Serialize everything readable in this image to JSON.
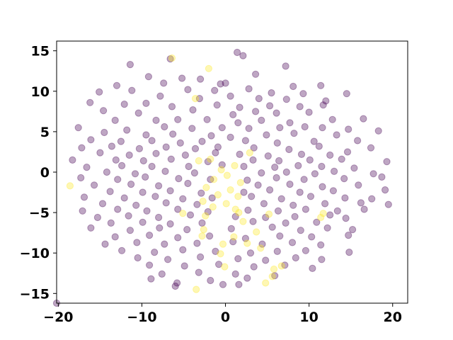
{
  "chart_data": {
    "type": "scatter",
    "title": "",
    "xlabel": "",
    "ylabel": "",
    "xlim": [
      -20.2,
      21.8
    ],
    "ylim": [
      -16.2,
      16.2
    ],
    "xticks": [
      -20,
      -10,
      0,
      10,
      20
    ],
    "yticks": [
      -15,
      -10,
      -5,
      0,
      5,
      10,
      15
    ],
    "xtick_labels": [
      "−20",
      "−10",
      "0",
      "10",
      "20"
    ],
    "ytick_labels": [
      "−15",
      "−10",
      "−5",
      "0",
      "5",
      "10",
      "15"
    ],
    "grid": false,
    "legend": "none",
    "marker_alpha": 0.35,
    "colors": {
      "class_a": "#440154",
      "class_b": "#fde725"
    },
    "series": [
      {
        "color_key": "class_a",
        "points": [
          [
            -11.4,
            13.3
          ],
          [
            -6.6,
            14.0
          ],
          [
            1.4,
            14.8
          ],
          [
            2.1,
            14.4
          ],
          [
            7.2,
            13.1
          ],
          [
            3.6,
            12.1
          ],
          [
            -9.2,
            11.8
          ],
          [
            -5.2,
            11.6
          ],
          [
            -3.0,
            11.5
          ],
          [
            -0.6,
            10.9
          ],
          [
            0.0,
            11.0
          ],
          [
            -7.4,
            11.0
          ],
          [
            11.4,
            10.7
          ],
          [
            8.1,
            10.6
          ],
          [
            -13.0,
            10.7
          ],
          [
            -11.2,
            10.1
          ],
          [
            -4.5,
            10.2
          ],
          [
            -1.3,
            10.1
          ],
          [
            2.8,
            10.3
          ],
          [
            5.5,
            9.8
          ],
          [
            9.3,
            9.7
          ],
          [
            14.5,
            9.7
          ],
          [
            -15.1,
            9.9
          ],
          [
            -7.8,
            9.4
          ],
          [
            -3.1,
            9.1
          ],
          [
            0.6,
            9.4
          ],
          [
            4.0,
            9.1
          ],
          [
            7.3,
            9.0
          ],
          [
            12.0,
            8.8
          ],
          [
            -16.2,
            8.6
          ],
          [
            -12.1,
            8.4
          ],
          [
            -9.5,
            8.5
          ],
          [
            -6.4,
            8.1
          ],
          [
            -1.0,
            8.3
          ],
          [
            1.7,
            8.0
          ],
          [
            5.3,
            8.2
          ],
          [
            8.9,
            8.1
          ],
          [
            11.7,
            8.3
          ],
          [
            -14.6,
            7.6
          ],
          [
            -10.4,
            7.3
          ],
          [
            -3.9,
            7.7
          ],
          [
            0.9,
            7.1
          ],
          [
            3.6,
            7.5
          ],
          [
            6.1,
            7.3
          ],
          [
            10.0,
            7.4
          ],
          [
            16.5,
            6.6
          ],
          [
            -13.2,
            6.4
          ],
          [
            -8.3,
            6.4
          ],
          [
            -5.7,
            6.5
          ],
          [
            -2.2,
            6.5
          ],
          [
            1.5,
            6.1
          ],
          [
            4.3,
            6.4
          ],
          [
            7.7,
            6.1
          ],
          [
            12.8,
            6.5
          ],
          [
            -17.6,
            5.5
          ],
          [
            -11.8,
            5.2
          ],
          [
            -7.3,
            5.6
          ],
          [
            -4.0,
            5.4
          ],
          [
            -0.4,
            5.5
          ],
          [
            2.8,
            5.4
          ],
          [
            6.5,
            5.5
          ],
          [
            9.5,
            5.6
          ],
          [
            11.6,
            5.5
          ],
          [
            14.7,
            5.3
          ],
          [
            -14.5,
            4.9
          ],
          [
            -9.5,
            4.6
          ],
          [
            -6.3,
            4.7
          ],
          [
            -1.7,
            4.5
          ],
          [
            0.6,
            4.3
          ],
          [
            4.9,
            4.6
          ],
          [
            8.2,
            4.8
          ],
          [
            13.3,
            4.6
          ],
          [
            18.3,
            5.1
          ],
          [
            -16.1,
            4.0
          ],
          [
            -12.5,
            3.8
          ],
          [
            -8.8,
            3.9
          ],
          [
            -5.4,
            3.6
          ],
          [
            -2.8,
            3.8
          ],
          [
            2.4,
            3.9
          ],
          [
            6.2,
            3.6
          ],
          [
            10.6,
            3.8
          ],
          [
            15.8,
            3.9
          ],
          [
            -17.2,
            3.0
          ],
          [
            -13.6,
            3.2
          ],
          [
            -10.3,
            2.9
          ],
          [
            -7.1,
            3.1
          ],
          [
            -3.6,
            2.9
          ],
          [
            -0.9,
            3.1
          ],
          [
            3.4,
            3.0
          ],
          [
            7.6,
            2.8
          ],
          [
            11.2,
            3.2
          ],
          [
            17.4,
            3.0
          ],
          [
            -15.0,
            2.4
          ],
          [
            -11.5,
            2.1
          ],
          [
            -8.3,
            2.3
          ],
          [
            -4.8,
            2.1
          ],
          [
            -1.2,
            2.4
          ],
          [
            1.7,
            2.2
          ],
          [
            5.1,
            2.0
          ],
          [
            9.1,
            2.2
          ],
          [
            12.5,
            2.1
          ],
          [
            14.6,
            2.5
          ],
          [
            -18.3,
            1.5
          ],
          [
            -13.1,
            1.5
          ],
          [
            -9.8,
            1.4
          ],
          [
            -6.5,
            1.6
          ],
          [
            -2.1,
            1.3
          ],
          [
            3.3,
            1.5
          ],
          [
            6.4,
            1.4
          ],
          [
            10.1,
            1.5
          ],
          [
            13.9,
            1.6
          ],
          [
            19.3,
            1.3
          ],
          [
            -16.6,
            0.6
          ],
          [
            -12.4,
            0.8
          ],
          [
            -8.8,
            0.7
          ],
          [
            -4.4,
            0.7
          ],
          [
            -0.4,
            0.9
          ],
          [
            2.2,
            0.7
          ],
          [
            5.9,
            0.6
          ],
          [
            8.7,
            0.8
          ],
          [
            11.5,
            0.7
          ],
          [
            15.4,
            0.5
          ],
          [
            -14.2,
            0.0
          ],
          [
            -10.8,
            -0.2
          ],
          [
            -7.2,
            0.1
          ],
          [
            -3.7,
            -0.1
          ],
          [
            4.3,
            -0.1
          ],
          [
            7.3,
            0.0
          ],
          [
            10.7,
            -0.2
          ],
          [
            13.0,
            0.1
          ],
          [
            17.7,
            -0.2
          ],
          [
            -17.3,
            -0.7
          ],
          [
            -12.9,
            -0.9
          ],
          [
            -9.6,
            -0.6
          ],
          [
            -5.6,
            -0.8
          ],
          [
            -1.8,
            -0.9
          ],
          [
            2.6,
            -1.0
          ],
          [
            6.1,
            -0.7
          ],
          [
            9.4,
            -0.9
          ],
          [
            14.2,
            -0.8
          ],
          [
            18.7,
            -0.6
          ],
          [
            -15.7,
            -1.6
          ],
          [
            -11.3,
            -1.5
          ],
          [
            -8.0,
            -1.7
          ],
          [
            -4.5,
            -1.4
          ],
          [
            3.9,
            -1.6
          ],
          [
            7.7,
            -1.5
          ],
          [
            11.6,
            -1.8
          ],
          [
            15.9,
            -1.6
          ],
          [
            -13.8,
            -2.4
          ],
          [
            -9.9,
            -2.5
          ],
          [
            -6.6,
            -2.3
          ],
          [
            -2.9,
            -2.6
          ],
          [
            2.2,
            -2.5
          ],
          [
            5.3,
            -2.2
          ],
          [
            8.9,
            -2.5
          ],
          [
            12.9,
            -2.3
          ],
          [
            19.1,
            -2.2
          ],
          [
            -16.9,
            -3.1
          ],
          [
            -12.1,
            -3.2
          ],
          [
            -8.4,
            -3.0
          ],
          [
            -5.1,
            -3.3
          ],
          [
            -1.6,
            -3.2
          ],
          [
            3.1,
            -3.0
          ],
          [
            6.7,
            -3.3
          ],
          [
            10.2,
            -3.0
          ],
          [
            14.3,
            -3.2
          ],
          [
            17.5,
            -3.3
          ],
          [
            -14.7,
            -3.9
          ],
          [
            -10.7,
            -4.1
          ],
          [
            -7.1,
            -3.8
          ],
          [
            -3.4,
            -4.0
          ],
          [
            4.6,
            -3.9
          ],
          [
            8.1,
            -4.1
          ],
          [
            11.9,
            -3.9
          ],
          [
            16.2,
            -3.8
          ],
          [
            19.5,
            -4.0
          ],
          [
            -17.1,
            -4.8
          ],
          [
            -12.9,
            -4.6
          ],
          [
            -9.4,
            -4.8
          ],
          [
            -5.7,
            -4.6
          ],
          [
            -2.1,
            -4.9
          ],
          [
            2.7,
            -4.7
          ],
          [
            6.3,
            -4.8
          ],
          [
            9.6,
            -4.6
          ],
          [
            13.4,
            -4.8
          ],
          [
            16.6,
            -4.6
          ],
          [
            -15.3,
            -5.6
          ],
          [
            -11.6,
            -5.4
          ],
          [
            -8.0,
            -5.6
          ],
          [
            -4.2,
            -5.3
          ],
          [
            1.2,
            -5.5
          ],
          [
            4.8,
            -5.6
          ],
          [
            8.3,
            -5.5
          ],
          [
            12.5,
            -5.3
          ],
          [
            14.4,
            -5.7
          ],
          [
            -13.7,
            -6.3
          ],
          [
            -9.9,
            -6.2
          ],
          [
            -6.6,
            -6.4
          ],
          [
            -2.8,
            -6.3
          ],
          [
            3.3,
            -6.1
          ],
          [
            7.2,
            -6.3
          ],
          [
            10.9,
            -6.2
          ],
          [
            -16.1,
            -6.9
          ],
          [
            -11.4,
            -7.2
          ],
          [
            -7.9,
            -6.9
          ],
          [
            -4.6,
            -7.1
          ],
          [
            0.7,
            -7.0
          ],
          [
            5.6,
            -6.8
          ],
          [
            9.0,
            -7.2
          ],
          [
            12.2,
            -6.9
          ],
          [
            15.2,
            -7.1
          ],
          [
            -13.2,
            -8.0
          ],
          [
            -9.1,
            -7.8
          ],
          [
            -5.7,
            -8.1
          ],
          [
            -1.9,
            -7.9
          ],
          [
            2.4,
            -8.2
          ],
          [
            6.5,
            -7.9
          ],
          [
            10.3,
            -8.0
          ],
          [
            14.7,
            -7.8
          ],
          [
            -14.4,
            -8.9
          ],
          [
            -10.6,
            -8.7
          ],
          [
            -7.3,
            -8.9
          ],
          [
            -3.4,
            -8.8
          ],
          [
            0.9,
            -8.6
          ],
          [
            4.4,
            -8.9
          ],
          [
            8.0,
            -8.7
          ],
          [
            11.4,
            -9.0
          ],
          [
            -12.4,
            -9.7
          ],
          [
            -8.5,
            -9.9
          ],
          [
            -5.1,
            -9.6
          ],
          [
            -1.2,
            -9.8
          ],
          [
            3.0,
            -10.0
          ],
          [
            6.2,
            -9.8
          ],
          [
            9.6,
            -9.7
          ],
          [
            14.8,
            -9.9
          ],
          [
            -10.5,
            -10.6
          ],
          [
            -6.9,
            -10.8
          ],
          [
            -3.0,
            -10.5
          ],
          [
            1.5,
            -10.7
          ],
          [
            4.8,
            -10.9
          ],
          [
            8.4,
            -10.6
          ],
          [
            11.5,
            -10.8
          ],
          [
            -9.1,
            -11.5
          ],
          [
            -4.9,
            -11.6
          ],
          [
            -0.8,
            -11.4
          ],
          [
            3.4,
            -11.7
          ],
          [
            7.1,
            -11.5
          ],
          [
            10.4,
            -11.9
          ],
          [
            -7.6,
            -12.6
          ],
          [
            -3.2,
            -12.4
          ],
          [
            1.2,
            -12.6
          ],
          [
            5.9,
            -12.8
          ],
          [
            -8.9,
            -13.2
          ],
          [
            -1.8,
            -13.4
          ],
          [
            2.6,
            -13.1
          ],
          [
            -5.8,
            -13.7
          ],
          [
            -0.3,
            -13.9
          ],
          [
            1.6,
            -13.9
          ],
          [
            -6.0,
            -14.1
          ],
          [
            -20.2,
            -16.2
          ]
        ]
      },
      {
        "color_key": "class_b",
        "points": [
          [
            -6.4,
            14.1
          ],
          [
            -2.0,
            12.8
          ],
          [
            -3.6,
            9.1
          ],
          [
            -18.6,
            -1.7
          ],
          [
            2.9,
            2.4
          ],
          [
            -1.8,
            1.6
          ],
          [
            -3.2,
            1.4
          ],
          [
            1.1,
            0.8
          ],
          [
            -0.5,
            0.3
          ],
          [
            0.2,
            -0.4
          ],
          [
            -1.4,
            -0.9
          ],
          [
            1.8,
            -1.3
          ],
          [
            -2.3,
            -1.9
          ],
          [
            0.6,
            -2.2
          ],
          [
            -0.9,
            -2.8
          ],
          [
            1.5,
            -3.0
          ],
          [
            -2.7,
            -3.6
          ],
          [
            0.1,
            -3.9
          ],
          [
            -1.5,
            -4.3
          ],
          [
            1.2,
            -4.6
          ],
          [
            -5.1,
            -5.1
          ],
          [
            -2.4,
            -5.4
          ],
          [
            1.6,
            -5.0
          ],
          [
            2.1,
            -6.1
          ],
          [
            -2.6,
            -7.1
          ],
          [
            -2.8,
            -7.9
          ],
          [
            1.0,
            -8.0
          ],
          [
            3.7,
            -7.4
          ],
          [
            -0.3,
            -8.9
          ],
          [
            2.6,
            -8.8
          ],
          [
            -0.6,
            -10.1
          ],
          [
            4.2,
            -9.4
          ],
          [
            -0.1,
            -11.7
          ],
          [
            6.7,
            -11.6
          ],
          [
            5.8,
            -12.0
          ],
          [
            5.6,
            -12.9
          ],
          [
            -3.5,
            -14.5
          ],
          [
            4.8,
            -13.7
          ],
          [
            11.4,
            -5.6
          ],
          [
            11.7,
            -5.1
          ],
          [
            5.2,
            -5.2
          ]
        ]
      }
    ]
  }
}
